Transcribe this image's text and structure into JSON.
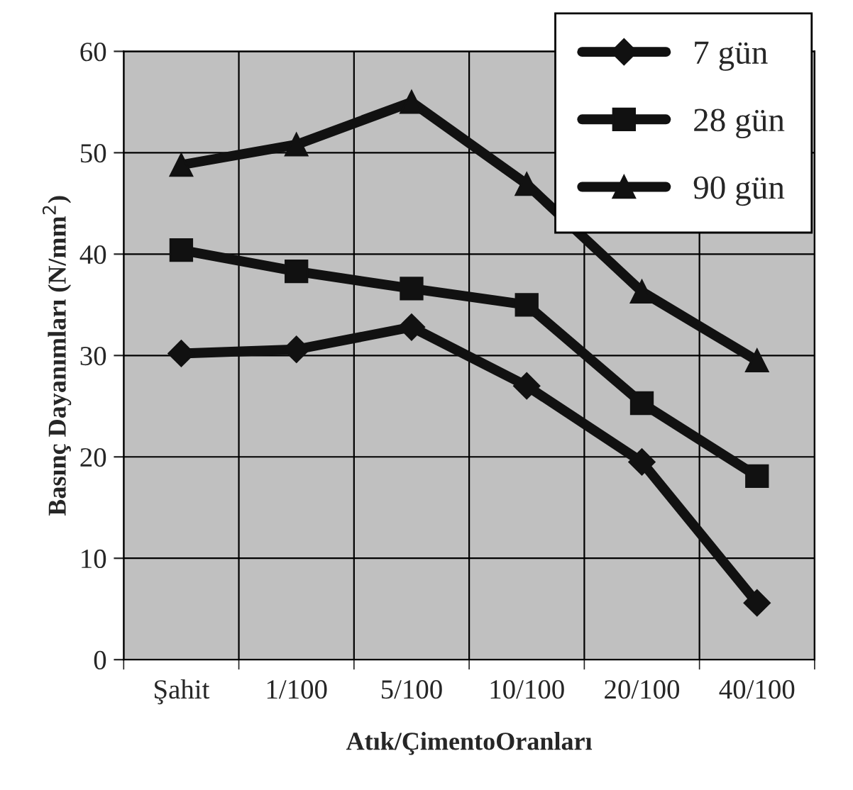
{
  "chart_data": {
    "type": "line",
    "xlabel": "Atık/ÇimentoOranları",
    "ylabel": "Basınç Dayanımları (N/mm$^{2}$)",
    "categories": [
      "Şahit",
      "1/100",
      "5/100",
      "10/100",
      "20/100",
      "40/100"
    ],
    "series": [
      {
        "name": "7 gün",
        "color": "#111111",
        "marker": "diamond",
        "values": [
          30.2,
          30.6,
          32.8,
          27.0,
          19.5,
          5.6
        ]
      },
      {
        "name": "28 gün",
        "color": "#111111",
        "marker": "square",
        "values": [
          40.4,
          38.3,
          36.6,
          35.0,
          25.3,
          18.1
        ]
      },
      {
        "name": "90 gün",
        "color": "#111111",
        "marker": "triangle",
        "values": [
          48.8,
          50.8,
          55.0,
          46.9,
          36.3,
          29.5
        ]
      }
    ],
    "ylim": [
      0,
      60
    ],
    "yticks": [
      0,
      10,
      20,
      30,
      40,
      50,
      60
    ],
    "grid": true,
    "legend": "top right",
    "line_style": "solid"
  }
}
